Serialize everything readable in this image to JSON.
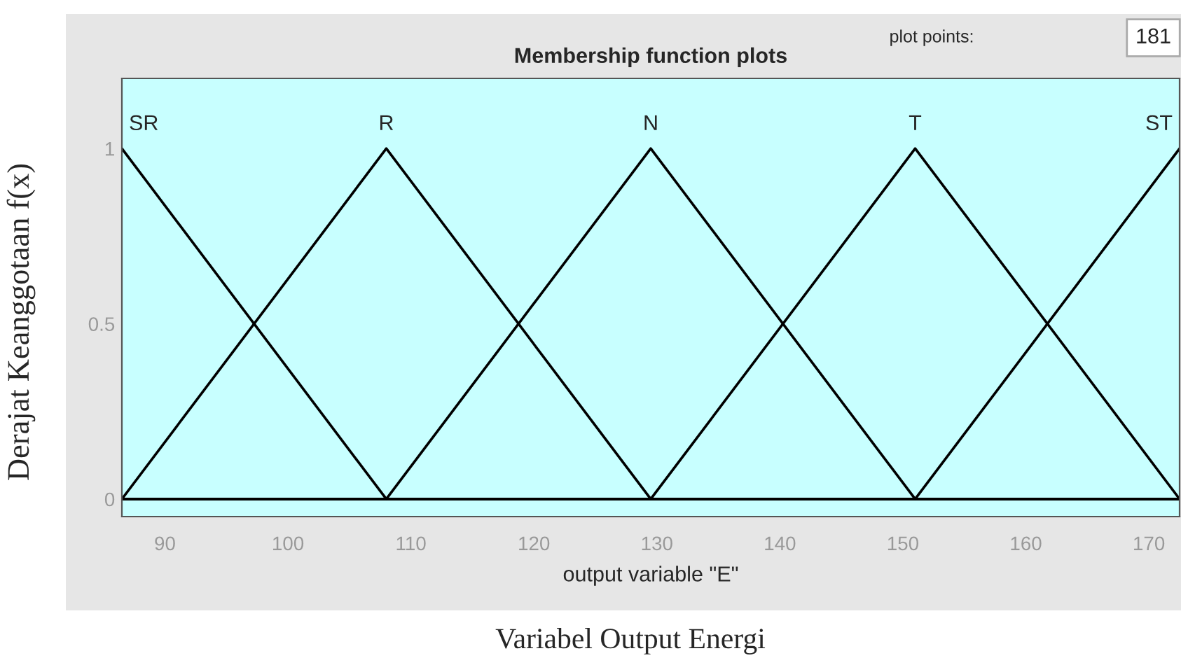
{
  "chart_data": {
    "type": "line",
    "title": "Membership function plots",
    "xlabel": "output variable \"E\"",
    "ylabel": "Derajat Keanggotaan f(x)",
    "annotations": [
      "plot points:",
      "181",
      "Variabel Output Energi"
    ],
    "series": [
      {
        "name": "SR",
        "color": "#000000",
        "x": [
          86.5,
          108,
          172.5
        ],
        "values": [
          1,
          0,
          0
        ]
      },
      {
        "name": "R",
        "color": "#000000",
        "x": [
          86.5,
          108,
          129.5,
          172.5
        ],
        "values": [
          0,
          1,
          0,
          0
        ]
      },
      {
        "name": "N",
        "color": "#000000",
        "x": [
          86.5,
          108,
          129.5,
          151,
          172.5
        ],
        "values": [
          0,
          0,
          1,
          0,
          0
        ]
      },
      {
        "name": "T",
        "color": "#000000",
        "x": [
          86.5,
          129.5,
          151,
          172.5
        ],
        "values": [
          0,
          0,
          1,
          0
        ]
      },
      {
        "name": "ST",
        "color": "#000000",
        "x": [
          86.5,
          151,
          172.5
        ],
        "values": [
          0,
          0,
          1
        ]
      }
    ],
    "xlim": [
      86.5,
      172.5
    ],
    "xticks": [
      90,
      100,
      110,
      120,
      130,
      140,
      150,
      160,
      170
    ],
    "ylim": [
      -0.05,
      1.2
    ],
    "yticks": [
      0,
      0.5,
      1
    ],
    "grid": false,
    "legend": false,
    "marker": "none",
    "line_style": "solid"
  }
}
